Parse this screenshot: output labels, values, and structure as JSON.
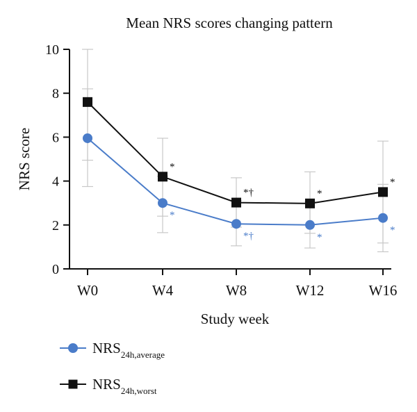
{
  "chart_data": {
    "type": "line",
    "title": "Mean NRS scores changing pattern",
    "xlabel": "Study week",
    "ylabel": "NRS score",
    "categories": [
      "W0",
      "W4",
      "W8",
      "W12",
      "W16"
    ],
    "ylim": [
      0,
      10
    ],
    "yticks": [
      "0",
      "2",
      "4",
      "6",
      "8",
      "10"
    ],
    "grid": false,
    "legend_position": "bottom-left",
    "series": [
      {
        "name": "NRS",
        "name_subscript": "24h,average",
        "color": "#4a7cc9",
        "marker": "circle",
        "values": [
          5.95,
          3.0,
          2.05,
          2.0,
          2.32
        ],
        "error_low": [
          3.75,
          1.65,
          1.05,
          0.95,
          0.78
        ],
        "error_high": [
          8.2,
          4.22,
          3.1,
          3.05,
          3.85
        ],
        "annotations": [
          "",
          "*",
          "*†",
          "*",
          "*"
        ]
      },
      {
        "name": "NRS",
        "name_subscript": "24h,worst",
        "color": "#111111",
        "marker": "square",
        "values": [
          7.6,
          4.2,
          3.02,
          2.98,
          3.5
        ],
        "error_low": [
          4.95,
          2.4,
          1.9,
          1.62,
          1.18
        ],
        "error_high": [
          10.0,
          5.95,
          4.15,
          4.42,
          5.82
        ],
        "annotations": [
          "",
          "*",
          "*†",
          "*",
          "*"
        ]
      }
    ]
  }
}
